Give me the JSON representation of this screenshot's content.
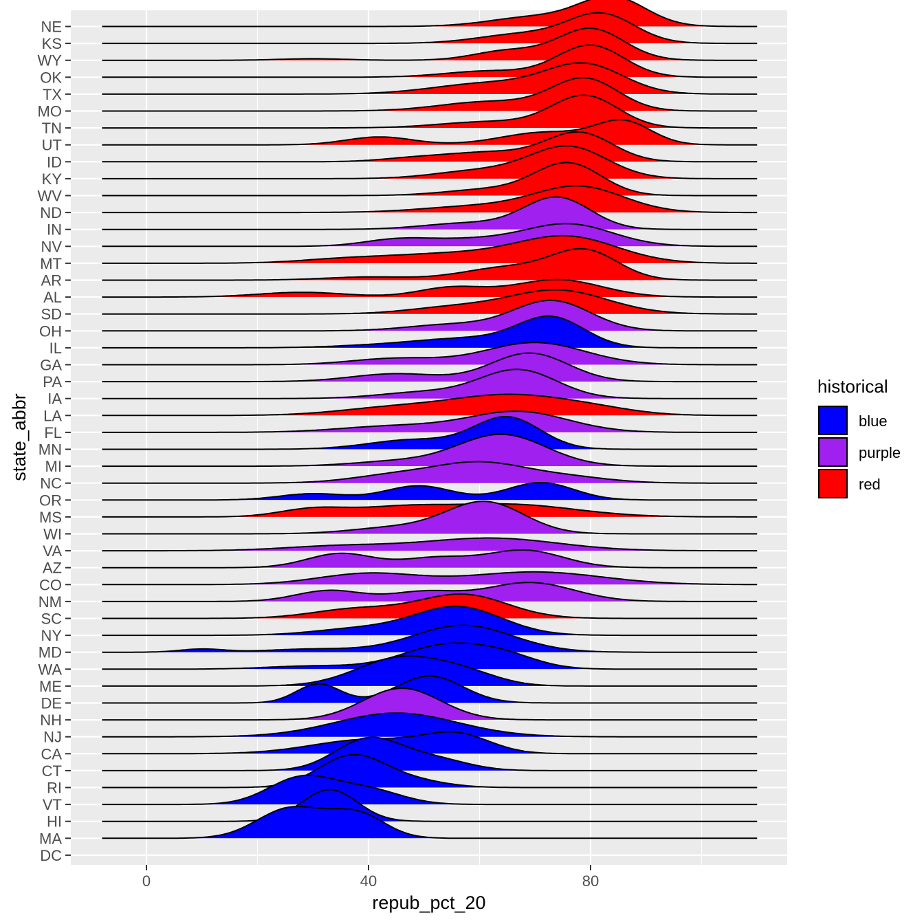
{
  "chart_data": {
    "type": "ridgeline",
    "xlabel": "repub_pct_20",
    "ylabel": "state_abbr",
    "xlim": [
      -14,
      115
    ],
    "x_ticks": [
      0,
      40,
      80
    ],
    "x_minor_ticks": [
      20,
      60,
      100
    ],
    "density_range": [
      -8,
      110
    ],
    "grid": true,
    "legend": {
      "title": "historical",
      "placement": "right",
      "entries": [
        {
          "label": "blue",
          "color": "#0000FF"
        },
        {
          "label": "purple",
          "color": "#A020F0"
        },
        {
          "label": "red",
          "color": "#FF0000"
        }
      ]
    },
    "colors": {
      "blue": "#0000FF",
      "purple": "#A020F0",
      "red": "#FF0000"
    },
    "states": [
      {
        "name": "NE",
        "group": "red",
        "peaks": [
          [
            84,
            0.9,
            6
          ],
          [
            70,
            0.3,
            8
          ]
        ]
      },
      {
        "name": "KS",
        "group": "red",
        "peaks": [
          [
            82,
            0.9,
            6
          ],
          [
            68,
            0.3,
            8
          ]
        ]
      },
      {
        "name": "WY",
        "group": "red",
        "peaks": [
          [
            80,
            1.0,
            6
          ],
          [
            65,
            0.3,
            6
          ],
          [
            30,
            0.05,
            6
          ]
        ]
      },
      {
        "name": "OK",
        "group": "red",
        "peaks": [
          [
            80,
            1.0,
            6
          ],
          [
            62,
            0.2,
            8
          ]
        ]
      },
      {
        "name": "TX",
        "group": "red",
        "peaks": [
          [
            79,
            0.9,
            7
          ],
          [
            62,
            0.35,
            10
          ]
        ]
      },
      {
        "name": "MO",
        "group": "red",
        "peaks": [
          [
            79,
            1.0,
            6
          ],
          [
            62,
            0.3,
            9
          ]
        ]
      },
      {
        "name": "TN",
        "group": "red",
        "peaks": [
          [
            79,
            1.0,
            6
          ],
          [
            62,
            0.2,
            9
          ]
        ]
      },
      {
        "name": "UT",
        "group": "red",
        "peaks": [
          [
            86,
            0.7,
            5
          ],
          [
            72,
            0.4,
            8
          ],
          [
            42,
            0.25,
            6
          ]
        ]
      },
      {
        "name": "ID",
        "group": "red",
        "peaks": [
          [
            78,
            0.9,
            6
          ],
          [
            62,
            0.3,
            8
          ],
          [
            48,
            0.1,
            6
          ]
        ]
      },
      {
        "name": "KY",
        "group": "red",
        "peaks": [
          [
            76,
            1.0,
            7
          ],
          [
            60,
            0.25,
            8
          ]
        ]
      },
      {
        "name": "WV",
        "group": "red",
        "peaks": [
          [
            76,
            1.0,
            6
          ],
          [
            62,
            0.2,
            8
          ]
        ]
      },
      {
        "name": "ND",
        "group": "red",
        "peaks": [
          [
            78,
            0.8,
            8
          ],
          [
            60,
            0.2,
            10
          ]
        ]
      },
      {
        "name": "IN",
        "group": "purple",
        "peaks": [
          [
            74,
            1.0,
            6
          ],
          [
            58,
            0.2,
            8
          ]
        ]
      },
      {
        "name": "NV",
        "group": "purple",
        "peaks": [
          [
            76,
            0.7,
            8
          ],
          [
            45,
            0.2,
            6
          ],
          [
            58,
            0.2,
            8
          ]
        ]
      },
      {
        "name": "MT",
        "group": "red",
        "peaks": [
          [
            76,
            0.8,
            9
          ],
          [
            55,
            0.3,
            12
          ],
          [
            35,
            0.1,
            8
          ]
        ]
      },
      {
        "name": "AR",
        "group": "red",
        "peaks": [
          [
            79,
            0.9,
            6
          ],
          [
            65,
            0.4,
            8
          ],
          [
            40,
            0.1,
            8
          ]
        ]
      },
      {
        "name": "AL",
        "group": "red",
        "peaks": [
          [
            74,
            0.55,
            8
          ],
          [
            55,
            0.3,
            6
          ],
          [
            28,
            0.15,
            8
          ]
        ]
      },
      {
        "name": "SD",
        "group": "red",
        "peaks": [
          [
            74,
            0.75,
            9
          ],
          [
            55,
            0.2,
            8
          ]
        ]
      },
      {
        "name": "OH",
        "group": "purple",
        "peaks": [
          [
            73,
            0.95,
            7
          ],
          [
            55,
            0.2,
            8
          ]
        ]
      },
      {
        "name": "IL",
        "group": "blue",
        "peaks": [
          [
            73,
            0.9,
            6
          ],
          [
            58,
            0.3,
            10
          ],
          [
            40,
            0.05,
            8
          ]
        ]
      },
      {
        "name": "GA",
        "group": "purple",
        "peaks": [
          [
            70,
            0.7,
            9
          ],
          [
            45,
            0.2,
            8
          ]
        ]
      },
      {
        "name": "PA",
        "group": "purple",
        "peaks": [
          [
            69,
            0.9,
            7
          ],
          [
            45,
            0.25,
            8
          ]
        ]
      },
      {
        "name": "IA",
        "group": "purple",
        "peaks": [
          [
            67,
            0.9,
            7
          ],
          [
            50,
            0.2,
            8
          ]
        ]
      },
      {
        "name": "LA",
        "group": "red",
        "peaks": [
          [
            65,
            0.6,
            10
          ],
          [
            45,
            0.25,
            10
          ],
          [
            80,
            0.2,
            8
          ]
        ]
      },
      {
        "name": "FL",
        "group": "purple",
        "peaks": [
          [
            67,
            0.65,
            9
          ],
          [
            45,
            0.2,
            10
          ]
        ]
      },
      {
        "name": "MN",
        "group": "blue",
        "peaks": [
          [
            65,
            1.0,
            6
          ],
          [
            48,
            0.3,
            8
          ]
        ]
      },
      {
        "name": "MI",
        "group": "purple",
        "peaks": [
          [
            64,
            1.0,
            8
          ],
          [
            45,
            0.15,
            8
          ]
        ]
      },
      {
        "name": "NC",
        "group": "purple",
        "peaks": [
          [
            60,
            0.6,
            8
          ],
          [
            45,
            0.25,
            8
          ],
          [
            75,
            0.2,
            8
          ]
        ]
      },
      {
        "name": "OR",
        "group": "blue",
        "peaks": [
          [
            71,
            0.55,
            6
          ],
          [
            49,
            0.45,
            6
          ],
          [
            30,
            0.2,
            6
          ]
        ]
      },
      {
        "name": "MS",
        "group": "red",
        "peaks": [
          [
            65,
            0.4,
            12
          ],
          [
            30,
            0.25,
            6
          ],
          [
            45,
            0.25,
            8
          ]
        ]
      },
      {
        "name": "WI",
        "group": "purple",
        "peaks": [
          [
            61,
            1.0,
            7
          ],
          [
            45,
            0.2,
            8
          ]
        ]
      },
      {
        "name": "VA",
        "group": "purple",
        "peaks": [
          [
            62,
            0.4,
            12
          ],
          [
            35,
            0.15,
            10
          ]
        ]
      },
      {
        "name": "AZ",
        "group": "purple",
        "peaks": [
          [
            68,
            0.55,
            7
          ],
          [
            35,
            0.45,
            6
          ],
          [
            52,
            0.3,
            6
          ]
        ]
      },
      {
        "name": "CO",
        "group": "purple",
        "peaks": [
          [
            40,
            0.35,
            9
          ],
          [
            70,
            0.4,
            12
          ]
        ]
      },
      {
        "name": "NM",
        "group": "purple",
        "peaks": [
          [
            69,
            0.6,
            8
          ],
          [
            33,
            0.35,
            6
          ],
          [
            50,
            0.3,
            6
          ]
        ]
      },
      {
        "name": "SC",
        "group": "red",
        "peaks": [
          [
            57,
            0.75,
            8
          ],
          [
            38,
            0.3,
            8
          ]
        ]
      },
      {
        "name": "NY",
        "group": "blue",
        "peaks": [
          [
            56,
            0.9,
            8
          ],
          [
            38,
            0.2,
            8
          ]
        ]
      },
      {
        "name": "MD",
        "group": "blue",
        "peaks": [
          [
            57,
            0.85,
            9
          ],
          [
            10,
            0.1,
            4
          ],
          [
            30,
            0.1,
            8
          ]
        ]
      },
      {
        "name": "WA",
        "group": "blue",
        "peaks": [
          [
            54,
            0.75,
            8
          ],
          [
            65,
            0.3,
            6
          ],
          [
            30,
            0.1,
            8
          ]
        ]
      },
      {
        "name": "ME",
        "group": "blue",
        "peaks": [
          [
            46,
            0.9,
            8
          ],
          [
            58,
            0.3,
            6
          ]
        ]
      },
      {
        "name": "DE",
        "group": "blue",
        "peaks": [
          [
            51,
            0.85,
            6
          ],
          [
            31,
            0.6,
            4
          ]
        ]
      },
      {
        "name": "NH",
        "group": "purple",
        "peaks": [
          [
            46,
            1.0,
            7
          ]
        ]
      },
      {
        "name": "NJ",
        "group": "blue",
        "peaks": [
          [
            45,
            0.75,
            11
          ]
        ]
      },
      {
        "name": "CA",
        "group": "blue",
        "peaks": [
          [
            56,
            0.55,
            6
          ],
          [
            40,
            0.45,
            10
          ]
        ]
      },
      {
        "name": "CT",
        "group": "blue",
        "peaks": [
          [
            40,
            1.0,
            6
          ],
          [
            52,
            0.35,
            6
          ]
        ]
      },
      {
        "name": "RI",
        "group": "blue",
        "peaks": [
          [
            37,
            1.0,
            6
          ],
          [
            48,
            0.2,
            6
          ]
        ]
      },
      {
        "name": "VT",
        "group": "blue",
        "peaks": [
          [
            28,
            0.85,
            6
          ],
          [
            40,
            0.45,
            6
          ]
        ]
      },
      {
        "name": "HI",
        "group": "blue",
        "peaks": [
          [
            33,
            1.0,
            5
          ]
        ]
      },
      {
        "name": "MA",
        "group": "blue",
        "peaks": [
          [
            26,
            0.95,
            6
          ],
          [
            38,
            0.75,
            5
          ]
        ]
      },
      {
        "name": "DC",
        "group": "blue",
        "peaks": []
      }
    ]
  }
}
